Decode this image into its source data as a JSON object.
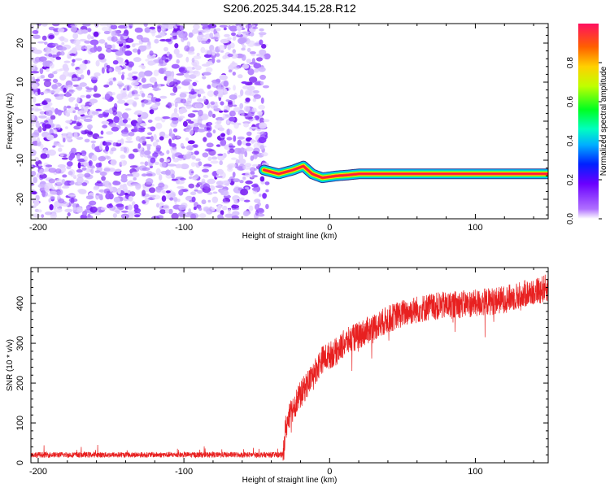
{
  "title": "S206.2025.344.15.28.R12",
  "chart_data": [
    {
      "type": "heatmap",
      "xlabel": "Height of straight line (km)",
      "ylabel": "Frequency (Hz)",
      "xlim": [
        -205,
        150
      ],
      "ylim": [
        -25,
        25
      ],
      "x_ticks": [
        -200,
        -100,
        0,
        100
      ],
      "y_ticks": [
        -20,
        -10,
        0,
        10,
        20
      ],
      "noise_region_x": [
        -205,
        -45
      ],
      "carrier": {
        "freq_hz": -13.5,
        "start_x": -45,
        "end_x": 150,
        "wobble_points": [
          [
            -45,
            -12.5
          ],
          [
            -35,
            -13.5
          ],
          [
            -25,
            -12.5
          ],
          [
            -18,
            -11.5
          ],
          [
            -12,
            -13.5
          ],
          [
            -5,
            -14.5
          ],
          [
            5,
            -14
          ],
          [
            12,
            -13.8
          ],
          [
            20,
            -13.5
          ],
          [
            150,
            -13.5
          ]
        ]
      },
      "colorbar": {
        "label": "Normalized spectral amplitude",
        "ticks": [
          "0.0",
          "0.2",
          "0.4",
          "0.6",
          "0.8"
        ],
        "range": [
          0,
          1
        ]
      }
    },
    {
      "type": "line",
      "xlabel": "Height of straight line (km)",
      "ylabel": "SNR (10 * v/v)",
      "xlim": [
        -205,
        150
      ],
      "ylim": [
        0,
        490
      ],
      "x_ticks": [
        -200,
        -100,
        0,
        100
      ],
      "y_ticks": [
        0,
        100,
        200,
        300,
        400
      ],
      "series": [
        {
          "color": "#e82020",
          "trend": [
            [
              -205,
              20
            ],
            [
              -40,
              20
            ],
            [
              -32,
              20
            ],
            [
              -30,
              90
            ],
            [
              -25,
              140
            ],
            [
              -20,
              170
            ],
            [
              -15,
              200
            ],
            [
              -10,
              230
            ],
            [
              -5,
              260
            ],
            [
              0,
              270
            ],
            [
              5,
              280
            ],
            [
              10,
              300
            ],
            [
              20,
              320
            ],
            [
              30,
              340
            ],
            [
              40,
              360
            ],
            [
              50,
              375
            ],
            [
              60,
              385
            ],
            [
              70,
              392
            ],
            [
              80,
              395
            ],
            [
              90,
              398
            ],
            [
              100,
              400
            ],
            [
              110,
              405
            ],
            [
              120,
              410
            ],
            [
              130,
              420
            ],
            [
              140,
              430
            ],
            [
              150,
              440
            ]
          ]
        }
      ]
    }
  ]
}
